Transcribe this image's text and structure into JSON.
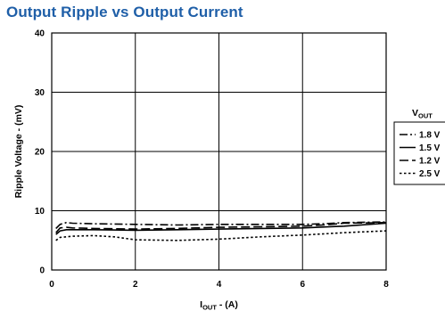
{
  "chart_data": {
    "type": "line",
    "title": "Output Ripple vs Output Current",
    "xlabel": {
      "main": "I",
      "sub": "OUT",
      "suffix": " - (A)"
    },
    "ylabel": "Ripple Voltage - (mV)",
    "xlim": [
      0,
      8
    ],
    "ylim": [
      0,
      40
    ],
    "xticks": [
      0,
      2,
      4,
      6,
      8
    ],
    "yticks": [
      0,
      10,
      20,
      30,
      40
    ],
    "grid": true,
    "legend": {
      "title_main": "V",
      "title_sub": "OUT",
      "placement": "right",
      "entries": [
        "1.8 V",
        "1.5 V",
        "1.2 V",
        "2.5 V"
      ]
    },
    "series": [
      {
        "name": "1.8 V",
        "dash": "dash-dot",
        "x": [
          0.1,
          0.2,
          0.35,
          0.5,
          1,
          2,
          3,
          4,
          5,
          6,
          6.5,
          7,
          8
        ],
        "y": [
          7.0,
          7.7,
          8.0,
          7.9,
          7.8,
          7.7,
          7.6,
          7.7,
          7.7,
          7.7,
          7.8,
          8.0,
          8.1
        ]
      },
      {
        "name": "1.5 V",
        "dash": "solid",
        "x": [
          0.1,
          0.2,
          0.35,
          0.5,
          1,
          2,
          3,
          4,
          5,
          6,
          7,
          8
        ],
        "y": [
          6.0,
          6.6,
          6.8,
          6.8,
          6.8,
          6.7,
          6.8,
          6.9,
          7.0,
          7.1,
          7.4,
          7.9
        ]
      },
      {
        "name": "1.2 V",
        "dash": "long-dash",
        "x": [
          0.1,
          0.2,
          0.35,
          0.5,
          1,
          2,
          3,
          4,
          5,
          6,
          6.5,
          7,
          8
        ],
        "y": [
          6.3,
          7.1,
          7.2,
          7.1,
          7.0,
          6.9,
          7.0,
          7.2,
          7.3,
          7.4,
          7.6,
          7.9,
          8.0
        ]
      },
      {
        "name": "2.5 V",
        "dash": "dotted",
        "x": [
          0.1,
          0.2,
          0.35,
          0.5,
          1,
          1.5,
          2,
          3,
          4,
          5,
          6,
          7,
          8
        ],
        "y": [
          5.0,
          5.5,
          5.6,
          5.7,
          5.8,
          5.6,
          5.1,
          5.0,
          5.2,
          5.6,
          5.9,
          6.3,
          6.6
        ]
      }
    ]
  }
}
